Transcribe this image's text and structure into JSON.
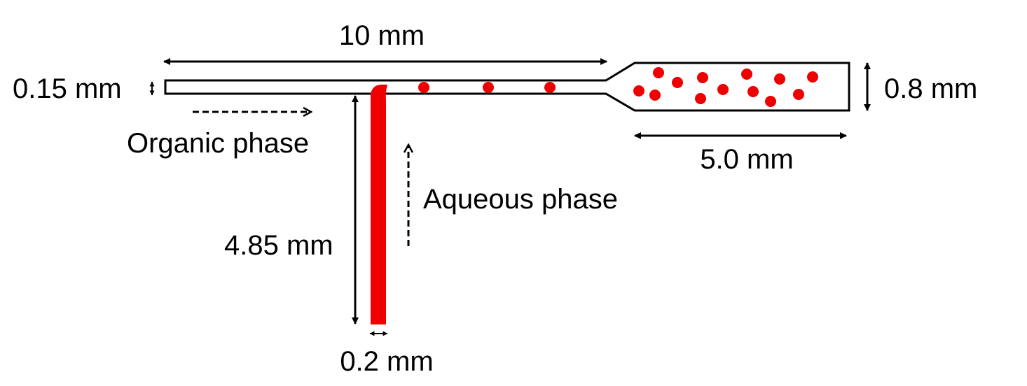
{
  "colors": {
    "aqueous": "#ee0000",
    "line": "#000000",
    "background": "#ffffff"
  },
  "labels": {
    "main_channel_length": "10 mm",
    "main_channel_width": "0.15 mm",
    "outlet_width": "0.8 mm",
    "outlet_length": "5.0 mm",
    "organic_phase": "Organic phase",
    "aqueous_phase": "Aqueous phase",
    "inlet_length": "4.85 mm",
    "inlet_width": "0.2 mm"
  },
  "icons": {
    "dimension_arrows": "double-headed-arrow",
    "flow_arrows": "dashed-arrow",
    "droplets": "red-dot"
  }
}
